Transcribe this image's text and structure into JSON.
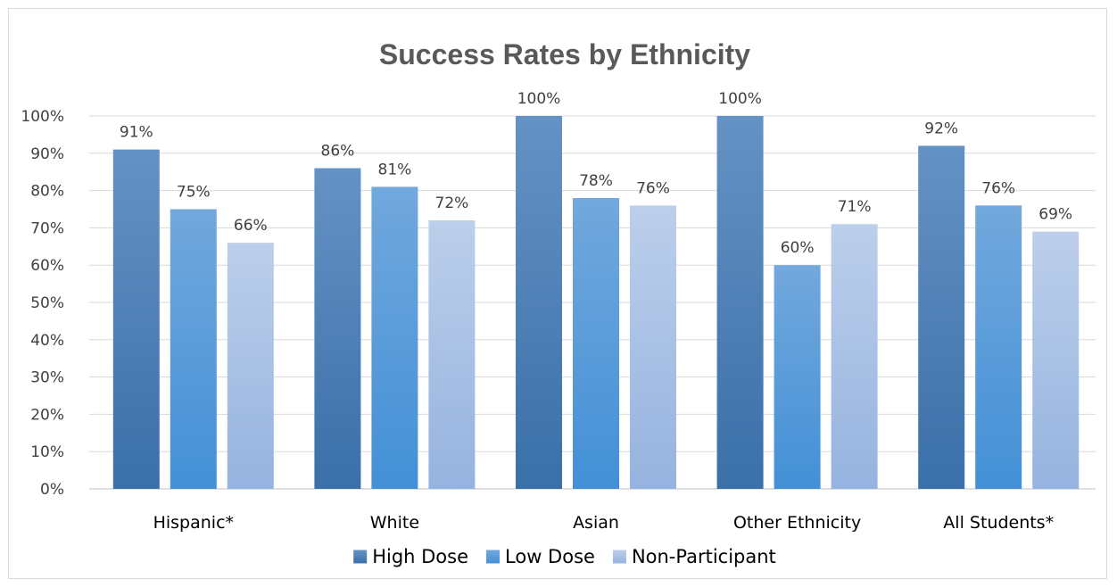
{
  "chart_data": {
    "type": "bar",
    "title": "Success Rates by Ethnicity",
    "xlabel": "",
    "ylabel": "",
    "categories": [
      "Hispanic*",
      "White",
      "Asian",
      "Other Ethnicity",
      "All Students*"
    ],
    "series": [
      {
        "name": "High Dose",
        "values": [
          91,
          86,
          100,
          100,
          92
        ],
        "color": "#4a7fb8"
      },
      {
        "name": "Low Dose",
        "values": [
          75,
          81,
          78,
          60,
          76
        ],
        "color": "#5a9bd8"
      },
      {
        "name": "Non-Participant",
        "values": [
          66,
          72,
          76,
          71,
          69
        ],
        "color": "#a9c3e6"
      }
    ],
    "ylim": [
      0,
      100
    ],
    "y_ticks": [
      0,
      10,
      20,
      30,
      40,
      50,
      60,
      70,
      80,
      90,
      100
    ],
    "value_suffix": "%",
    "grid": true,
    "legend_position": "bottom"
  }
}
